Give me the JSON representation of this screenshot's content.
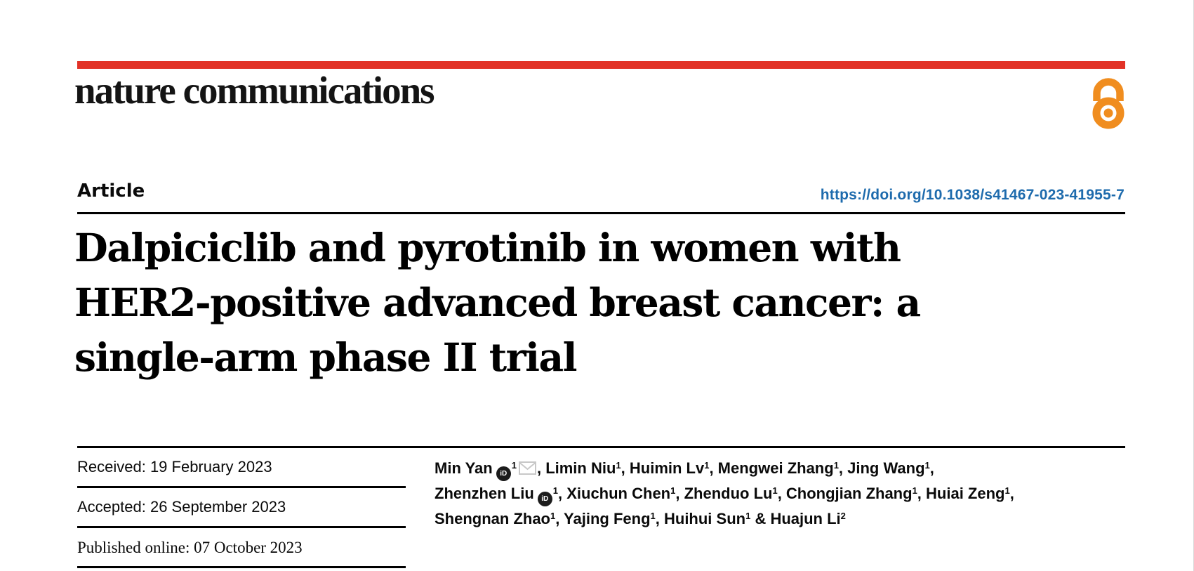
{
  "header": {
    "journal_name": "nature communications",
    "accent_bar_color": "#e23227",
    "open_access_icon_color": "#f08d1f"
  },
  "article": {
    "type_label": "Article",
    "doi_link": "https://doi.org/10.1038/s41467-023-41955-7",
    "doi_color": "#1e6bad",
    "title_lines": [
      "Dalpiciclib and pyrotinib in women with",
      "HER2-positive advanced breast cancer: a",
      "single-arm phase II trial"
    ]
  },
  "dates": {
    "received": "Received: 19 February 2023",
    "accepted": "Accepted: 26 September 2023",
    "published": "Published online: 07 October 2023"
  },
  "authors": {
    "orcid_icon_text": "iD",
    "envelope_icon_color": "#c8c8c8",
    "lines": [
      {
        "segments": [
          {
            "t": "Min Yan"
          },
          {
            "icon": "orcid"
          },
          {
            "sup": "1"
          },
          {
            "icon": "envelope"
          },
          {
            "t": ", Limin Niu"
          },
          {
            "sup": "1"
          },
          {
            "t": ", Huimin Lv"
          },
          {
            "sup": "1"
          },
          {
            "t": ", Mengwei Zhang"
          },
          {
            "sup": "1"
          },
          {
            "t": ", Jing Wang"
          },
          {
            "sup": "1"
          },
          {
            "t": ","
          }
        ]
      },
      {
        "segments": [
          {
            "t": "Zhenzhen Liu"
          },
          {
            "icon": "orcid"
          },
          {
            "sup": "1"
          },
          {
            "t": ", Xiuchun Chen"
          },
          {
            "sup": "1"
          },
          {
            "t": ", Zhenduo Lu"
          },
          {
            "sup": "1"
          },
          {
            "t": ", Chongjian Zhang"
          },
          {
            "sup": "1"
          },
          {
            "t": ", Huiai Zeng"
          },
          {
            "sup": "1"
          },
          {
            "t": ","
          }
        ]
      },
      {
        "segments": [
          {
            "t": "Shengnan Zhao"
          },
          {
            "sup": "1"
          },
          {
            "t": ", Yajing Feng"
          },
          {
            "sup": "1"
          },
          {
            "t": ", Huihui Sun"
          },
          {
            "sup": "1"
          },
          {
            "t": " & Huajun Li"
          },
          {
            "sup": "2"
          }
        ]
      }
    ]
  }
}
